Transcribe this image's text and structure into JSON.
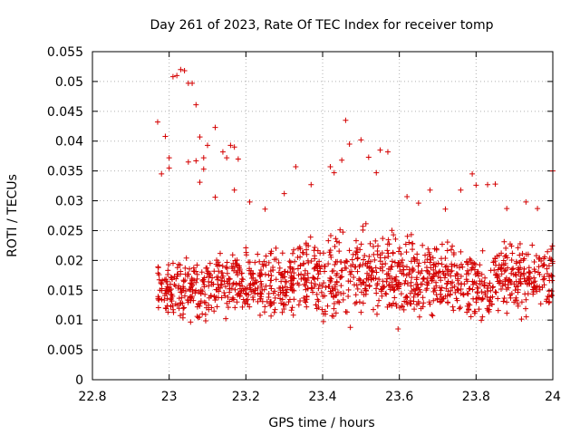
{
  "chart_data": {
    "type": "scatter",
    "title": "Day 261 of 2023, Rate Of TEC Index for receiver tomp",
    "xlabel": "GPS time / hours",
    "ylabel": "ROTI / TECUs",
    "xlim": [
      22.8,
      24.0
    ],
    "ylim": [
      0,
      0.055
    ],
    "xticks": [
      "22.8",
      "23",
      "23.2",
      "23.4",
      "23.6",
      "23.8",
      "24"
    ],
    "yticks": [
      "0",
      "0.005",
      "0.01",
      "0.015",
      "0.02",
      "0.025",
      "0.03",
      "0.035",
      "0.04",
      "0.045",
      "0.05",
      "0.055"
    ],
    "grid": true,
    "marker": "+",
    "color": "#d40000",
    "series": [
      {
        "points": [
          [
            22.97,
            0.0432
          ],
          [
            22.98,
            0.0345
          ],
          [
            22.99,
            0.0408
          ],
          [
            23.0,
            0.0372
          ],
          [
            23.0,
            0.0355
          ],
          [
            23.01,
            0.0508
          ],
          [
            23.02,
            0.051
          ],
          [
            23.03,
            0.052
          ],
          [
            23.04,
            0.0518
          ],
          [
            23.05,
            0.0497
          ],
          [
            23.06,
            0.0497
          ],
          [
            23.07,
            0.0461
          ],
          [
            23.08,
            0.0407
          ],
          [
            23.05,
            0.0365
          ],
          [
            23.07,
            0.0367
          ],
          [
            23.09,
            0.0372
          ],
          [
            23.1,
            0.0393
          ],
          [
            23.12,
            0.0423
          ],
          [
            23.09,
            0.0353
          ],
          [
            23.08,
            0.0331
          ],
          [
            23.14,
            0.0382
          ],
          [
            23.16,
            0.0393
          ],
          [
            23.17,
            0.039
          ],
          [
            23.18,
            0.037
          ],
          [
            23.15,
            0.0372
          ],
          [
            23.12,
            0.0306
          ],
          [
            23.17,
            0.0318
          ],
          [
            23.21,
            0.0298
          ],
          [
            23.25,
            0.0286
          ],
          [
            23.3,
            0.0312
          ],
          [
            23.33,
            0.0357
          ],
          [
            23.37,
            0.0327
          ],
          [
            23.42,
            0.0357
          ],
          [
            23.43,
            0.0347
          ],
          [
            23.45,
            0.0368
          ],
          [
            23.46,
            0.0435
          ],
          [
            23.47,
            0.0395
          ],
          [
            23.5,
            0.0402
          ],
          [
            23.52,
            0.0373
          ],
          [
            23.55,
            0.0385
          ],
          [
            23.57,
            0.0382
          ],
          [
            23.54,
            0.0347
          ],
          [
            23.62,
            0.0307
          ],
          [
            23.65,
            0.0296
          ],
          [
            23.68,
            0.0318
          ],
          [
            23.72,
            0.0286
          ],
          [
            23.76,
            0.0318
          ],
          [
            23.79,
            0.0345
          ],
          [
            23.8,
            0.0326
          ],
          [
            23.83,
            0.0327
          ],
          [
            23.85,
            0.0328
          ],
          [
            23.88,
            0.0287
          ],
          [
            23.93,
            0.0298
          ],
          [
            23.96,
            0.0287
          ],
          [
            24.0,
            0.035
          ]
        ],
        "band": {
          "x_range": [
            22.97,
            24.0
          ],
          "count": 1350,
          "profile": [
            [
              22.97,
              0.0096,
              0.0215
            ],
            [
              23.02,
              0.008,
              0.0225
            ],
            [
              23.07,
              0.0085,
              0.0225
            ],
            [
              23.12,
              0.0095,
              0.023
            ],
            [
              23.17,
              0.0092,
              0.024
            ],
            [
              23.22,
              0.009,
              0.0235
            ],
            [
              23.27,
              0.008,
              0.024
            ],
            [
              23.32,
              0.0085,
              0.025
            ],
            [
              23.37,
              0.0088,
              0.026
            ],
            [
              23.42,
              0.008,
              0.0265
            ],
            [
              23.47,
              0.0075,
              0.027
            ],
            [
              23.52,
              0.008,
              0.0275
            ],
            [
              23.57,
              0.0078,
              0.027
            ],
            [
              23.62,
              0.0065,
              0.0265
            ],
            [
              23.67,
              0.0065,
              0.027
            ],
            [
              23.72,
              0.0075,
              0.026
            ],
            [
              23.77,
              0.007,
              0.025
            ],
            [
              23.82,
              0.0075,
              0.024
            ],
            [
              23.87,
              0.0085,
              0.025
            ],
            [
              23.92,
              0.009,
              0.0255
            ],
            [
              23.97,
              0.0095,
              0.025
            ],
            [
              24.0,
              0.01,
              0.024
            ]
          ]
        }
      }
    ]
  }
}
